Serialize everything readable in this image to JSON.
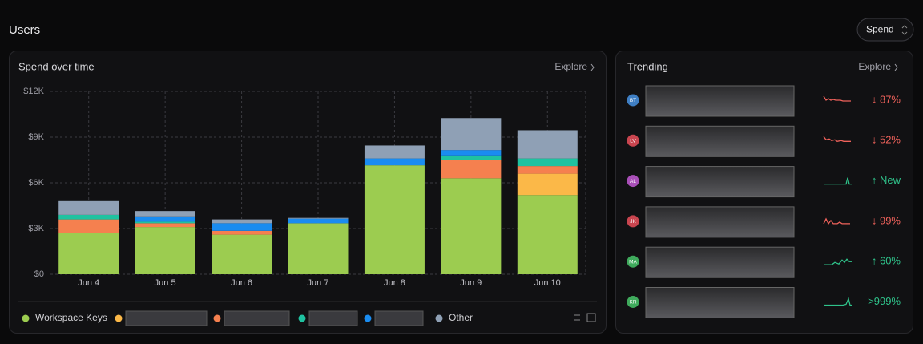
{
  "header": {
    "title": "Users",
    "control": "Spend"
  },
  "chart_data": {
    "type": "stacked-bar",
    "title": "Spend over time",
    "link": "Explore",
    "categories": [
      "Jun 4",
      "Jun 5",
      "Jun 6",
      "Jun 7",
      "Jun 8",
      "Jun 9",
      "Jun 10"
    ],
    "series": [
      {
        "name": "Workspace Keys",
        "color": "#9ccc50",
        "values": [
          2700,
          3100,
          2600,
          3350,
          7150,
          6300,
          5200
        ]
      },
      {
        "name": null,
        "color": "#fbb848",
        "values": [
          0,
          0,
          0,
          0,
          0,
          0,
          1400
        ]
      },
      {
        "name": null,
        "color": "#f5804f",
        "values": [
          900,
          250,
          250,
          0,
          0,
          1200,
          500
        ]
      },
      {
        "name": null,
        "color": "#1fc2a0",
        "values": [
          300,
          100,
          0,
          0,
          0,
          300,
          500
        ]
      },
      {
        "name": null,
        "color": "#1a8cf0",
        "values": [
          0,
          350,
          500,
          300,
          450,
          350,
          0
        ]
      },
      {
        "name": "Other",
        "color": "#8fa0b5",
        "values": [
          900,
          350,
          250,
          50,
          850,
          2100,
          1850
        ]
      }
    ],
    "ylim": [
      0,
      12000
    ],
    "yticks": [
      {
        "value": 0,
        "label": "$0"
      },
      {
        "value": 3000,
        "label": "$3K"
      },
      {
        "value": 6000,
        "label": "$6K"
      },
      {
        "value": 9000,
        "label": "$9K"
      },
      {
        "value": 12000,
        "label": "$12K"
      }
    ],
    "grid": true
  },
  "trending": {
    "title": "Trending",
    "link": "Explore",
    "rows": [
      {
        "initials": "BT",
        "avatar_color": "#3f7fc4",
        "change": "↓ 87%",
        "color": "#f0625b"
      },
      {
        "initials": "LV",
        "avatar_color": "#c9454f",
        "change": "↓ 52%",
        "color": "#f0625b"
      },
      {
        "initials": "AL",
        "avatar_color": "#a94fb8",
        "change": "↑ New",
        "color": "#2fc28a"
      },
      {
        "initials": "JK",
        "avatar_color": "#c9454f",
        "change": "↓ 99%",
        "color": "#f0625b"
      },
      {
        "initials": "MA",
        "avatar_color": "#3faa5c",
        "change": "↑ 60%",
        "color": "#2fc28a"
      },
      {
        "initials": "KR",
        "avatar_color": "#3faa5c",
        "change": ">999%",
        "color": "#2fc28a"
      }
    ]
  }
}
